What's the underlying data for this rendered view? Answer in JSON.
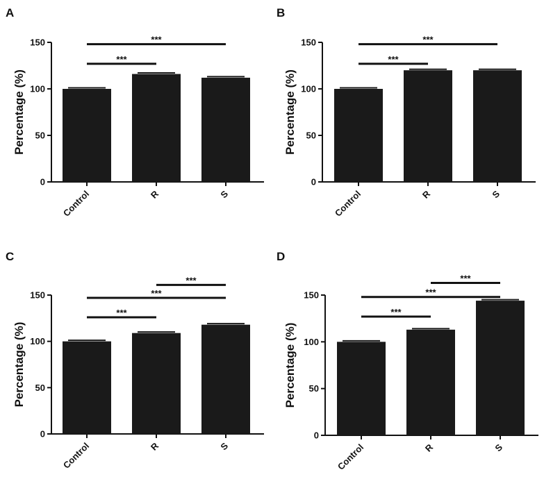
{
  "figure": {
    "colors": {
      "bar": "#1a1a1a",
      "axis": "#111111",
      "background": "#ffffff"
    }
  },
  "chart_data": [
    {
      "panel": "A",
      "type": "bar",
      "categories": [
        "Control",
        "R",
        "S"
      ],
      "values": [
        100,
        116,
        112
      ],
      "ylabel": "Percentage (%)",
      "ylim": [
        0,
        150
      ],
      "yticks": [
        "0",
        "50",
        "100",
        "150"
      ],
      "significance": [
        {
          "from": 0,
          "to": 1,
          "label": "***",
          "y": 127
        },
        {
          "from": 0,
          "to": 2,
          "label": "***",
          "y": 148
        }
      ]
    },
    {
      "panel": "B",
      "type": "bar",
      "categories": [
        "Control",
        "R",
        "S"
      ],
      "values": [
        100,
        120,
        120
      ],
      "ylabel": "Percentage (%)",
      "ylim": [
        0,
        150
      ],
      "yticks": [
        "0",
        "50",
        "100",
        "150"
      ],
      "significance": [
        {
          "from": 0,
          "to": 1,
          "label": "***",
          "y": 127
        },
        {
          "from": 0,
          "to": 2,
          "label": "***",
          "y": 148
        }
      ]
    },
    {
      "panel": "C",
      "type": "bar",
      "categories": [
        "Control",
        "R",
        "S"
      ],
      "values": [
        100,
        109,
        118
      ],
      "ylabel": "Percentage (%)",
      "ylim": [
        0,
        150
      ],
      "yticks": [
        "0",
        "50",
        "100",
        "150"
      ],
      "significance": [
        {
          "from": 0,
          "to": 1,
          "label": "***",
          "y": 126
        },
        {
          "from": 0,
          "to": 2,
          "label": "***",
          "y": 147
        },
        {
          "from": 1,
          "to": 2,
          "label": "***",
          "y": 161
        }
      ]
    },
    {
      "panel": "D",
      "type": "bar",
      "categories": [
        "Control",
        "R",
        "S"
      ],
      "values": [
        100,
        113,
        144
      ],
      "ylabel": "Percentage (%)",
      "ylim": [
        0,
        150
      ],
      "yticks": [
        "0",
        "50",
        "100",
        "150"
      ],
      "significance": [
        {
          "from": 0,
          "to": 1,
          "label": "***",
          "y": 127
        },
        {
          "from": 0,
          "to": 2,
          "label": "***",
          "y": 148
        },
        {
          "from": 1,
          "to": 2,
          "label": "***",
          "y": 163
        }
      ]
    }
  ]
}
